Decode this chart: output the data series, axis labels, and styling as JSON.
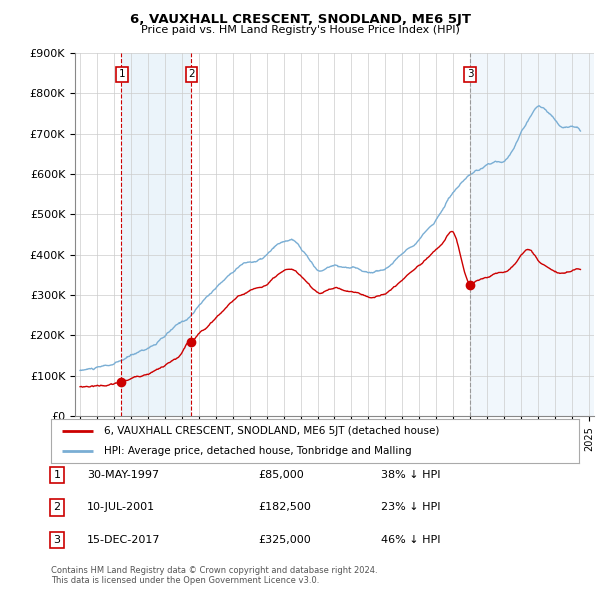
{
  "title": "6, VAUXHALL CRESCENT, SNODLAND, ME6 5JT",
  "subtitle": "Price paid vs. HM Land Registry's House Price Index (HPI)",
  "ylim": [
    0,
    900000
  ],
  "yticks": [
    0,
    100000,
    200000,
    300000,
    400000,
    500000,
    600000,
    700000,
    800000,
    900000
  ],
  "ytick_labels": [
    "£0",
    "£100K",
    "£200K",
    "£300K",
    "£400K",
    "£500K",
    "£600K",
    "£700K",
    "£800K",
    "£900K"
  ],
  "sales": [
    {
      "date_num": 1997.41,
      "price": 85000,
      "label": "1",
      "vline_style": "red_dashed"
    },
    {
      "date_num": 2001.52,
      "price": 182500,
      "label": "2",
      "vline_style": "red_dashed"
    },
    {
      "date_num": 2017.96,
      "price": 325000,
      "label": "3",
      "vline_style": "grey_dashed"
    }
  ],
  "sale_vline_color_red": "#cc0000",
  "sale_vline_color_grey": "#999999",
  "sale_marker_color": "#cc0000",
  "hpi_color": "#7aaed4",
  "hpi_fill_color": "#d4e6f5",
  "property_color": "#cc0000",
  "shading_color": "#d8eaf7",
  "legend_property": "6, VAUXHALL CRESCENT, SNODLAND, ME6 5JT (detached house)",
  "legend_hpi": "HPI: Average price, detached house, Tonbridge and Malling",
  "table_rows": [
    {
      "num": "1",
      "date": "30-MAY-1997",
      "price": "£85,000",
      "hpi": "38% ↓ HPI"
    },
    {
      "num": "2",
      "date": "10-JUL-2001",
      "price": "£182,500",
      "hpi": "23% ↓ HPI"
    },
    {
      "num": "3",
      "date": "15-DEC-2017",
      "price": "£325,000",
      "hpi": "46% ↓ HPI"
    }
  ],
  "footnote": "Contains HM Land Registry data © Crown copyright and database right 2024.\nThis data is licensed under the Open Government Licence v3.0.",
  "background_color": "#ffffff",
  "grid_color": "#cccccc",
  "xlim_start": 1994.7,
  "xlim_end": 2025.3
}
